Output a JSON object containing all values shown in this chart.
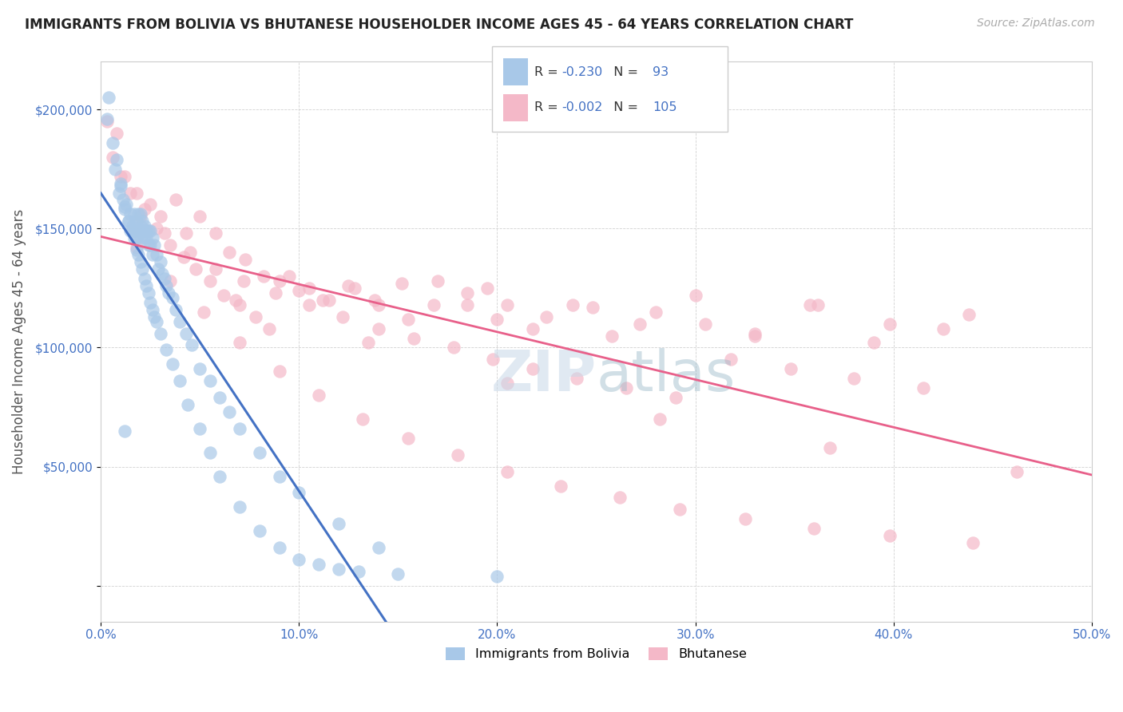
{
  "title": "IMMIGRANTS FROM BOLIVIA VS BHUTANESE HOUSEHOLDER INCOME AGES 45 - 64 YEARS CORRELATION CHART",
  "source": "Source: ZipAtlas.com",
  "ylabel": "Householder Income Ages 45 - 64 years",
  "xlim": [
    0.0,
    0.5
  ],
  "ylim": [
    -15000,
    220000
  ],
  "xtick_vals": [
    0.0,
    0.1,
    0.2,
    0.3,
    0.4,
    0.5
  ],
  "xtick_labels": [
    "0.0%",
    "10.0%",
    "20.0%",
    "30.0%",
    "40.0%",
    "50.0%"
  ],
  "yticks": [
    0,
    50000,
    100000,
    150000,
    200000
  ],
  "ytick_labels": [
    "",
    "$50,000",
    "$100,000",
    "$150,000",
    "$200,000"
  ],
  "bolivia_R": -0.23,
  "bolivia_N": 93,
  "bhutan_R": -0.002,
  "bhutan_N": 105,
  "bolivia_color": "#a8c8e8",
  "bhutan_color": "#f4b8c8",
  "bolivia_line_color": "#4472c4",
  "bhutan_line_color": "#e8608a",
  "bolivia_trendline_color": "#7090c8",
  "title_color": "#222222",
  "axis_tick_color": "#4472c4",
  "watermark_color": "#c8d8e8",
  "bolivia_scatter_x": [
    0.004,
    0.007,
    0.009,
    0.01,
    0.011,
    0.012,
    0.013,
    0.014,
    0.015,
    0.015,
    0.016,
    0.017,
    0.017,
    0.018,
    0.018,
    0.019,
    0.019,
    0.02,
    0.02,
    0.02,
    0.021,
    0.021,
    0.022,
    0.022,
    0.022,
    0.023,
    0.023,
    0.024,
    0.024,
    0.025,
    0.025,
    0.026,
    0.026,
    0.027,
    0.028,
    0.029,
    0.03,
    0.031,
    0.032,
    0.033,
    0.034,
    0.036,
    0.038,
    0.04,
    0.043,
    0.046,
    0.05,
    0.055,
    0.06,
    0.065,
    0.07,
    0.08,
    0.09,
    0.1,
    0.12,
    0.14,
    0.003,
    0.006,
    0.008,
    0.01,
    0.012,
    0.014,
    0.016,
    0.017,
    0.018,
    0.019,
    0.02,
    0.021,
    0.022,
    0.023,
    0.024,
    0.025,
    0.026,
    0.027,
    0.028,
    0.03,
    0.033,
    0.036,
    0.04,
    0.044,
    0.05,
    0.055,
    0.06,
    0.07,
    0.08,
    0.09,
    0.1,
    0.11,
    0.12,
    0.13,
    0.15,
    0.2,
    0.012
  ],
  "bolivia_scatter_y": [
    205000,
    175000,
    165000,
    168000,
    162000,
    158000,
    160000,
    153000,
    156000,
    149000,
    151000,
    156000,
    149000,
    153000,
    146000,
    156000,
    149000,
    151000,
    146000,
    156000,
    149000,
    153000,
    149000,
    146000,
    151000,
    149000,
    146000,
    149000,
    143000,
    149000,
    143000,
    146000,
    139000,
    143000,
    139000,
    133000,
    136000,
    131000,
    129000,
    126000,
    123000,
    121000,
    116000,
    111000,
    106000,
    101000,
    91000,
    86000,
    79000,
    73000,
    66000,
    56000,
    46000,
    39000,
    26000,
    16000,
    196000,
    186000,
    179000,
    169000,
    159000,
    153000,
    149000,
    146000,
    141000,
    139000,
    136000,
    133000,
    129000,
    126000,
    123000,
    119000,
    116000,
    113000,
    111000,
    106000,
    99000,
    93000,
    86000,
    76000,
    66000,
    56000,
    46000,
    33000,
    23000,
    16000,
    11000,
    9000,
    7000,
    6000,
    5000,
    4000,
    65000
  ],
  "bhutan_scatter_x": [
    0.003,
    0.008,
    0.012,
    0.018,
    0.025,
    0.03,
    0.038,
    0.043,
    0.05,
    0.058,
    0.065,
    0.073,
    0.082,
    0.09,
    0.1,
    0.112,
    0.125,
    0.138,
    0.152,
    0.168,
    0.185,
    0.205,
    0.225,
    0.248,
    0.272,
    0.3,
    0.33,
    0.362,
    0.398,
    0.438,
    0.006,
    0.015,
    0.022,
    0.028,
    0.035,
    0.042,
    0.048,
    0.055,
    0.062,
    0.07,
    0.078,
    0.085,
    0.095,
    0.105,
    0.115,
    0.128,
    0.14,
    0.155,
    0.17,
    0.185,
    0.2,
    0.218,
    0.238,
    0.258,
    0.28,
    0.305,
    0.33,
    0.358,
    0.39,
    0.425,
    0.01,
    0.02,
    0.032,
    0.045,
    0.058,
    0.072,
    0.088,
    0.105,
    0.122,
    0.14,
    0.158,
    0.178,
    0.198,
    0.218,
    0.24,
    0.265,
    0.29,
    0.318,
    0.348,
    0.38,
    0.415,
    0.018,
    0.035,
    0.052,
    0.07,
    0.09,
    0.11,
    0.132,
    0.155,
    0.18,
    0.205,
    0.232,
    0.262,
    0.292,
    0.325,
    0.36,
    0.398,
    0.44,
    0.068,
    0.135,
    0.205,
    0.282,
    0.368,
    0.462,
    0.195
  ],
  "bhutan_scatter_y": [
    195000,
    190000,
    172000,
    165000,
    160000,
    155000,
    162000,
    148000,
    155000,
    148000,
    140000,
    137000,
    130000,
    128000,
    124000,
    120000,
    126000,
    120000,
    127000,
    118000,
    123000,
    118000,
    113000,
    117000,
    110000,
    122000,
    106000,
    118000,
    110000,
    114000,
    180000,
    165000,
    158000,
    150000,
    143000,
    138000,
    133000,
    128000,
    122000,
    118000,
    113000,
    108000,
    130000,
    125000,
    120000,
    125000,
    118000,
    112000,
    128000,
    118000,
    112000,
    108000,
    118000,
    105000,
    115000,
    110000,
    105000,
    118000,
    102000,
    108000,
    172000,
    155000,
    148000,
    140000,
    133000,
    128000,
    123000,
    118000,
    113000,
    108000,
    104000,
    100000,
    95000,
    91000,
    87000,
    83000,
    79000,
    95000,
    91000,
    87000,
    83000,
    142000,
    128000,
    115000,
    102000,
    90000,
    80000,
    70000,
    62000,
    55000,
    48000,
    42000,
    37000,
    32000,
    28000,
    24000,
    21000,
    18000,
    120000,
    102000,
    85000,
    70000,
    58000,
    48000,
    125000
  ]
}
